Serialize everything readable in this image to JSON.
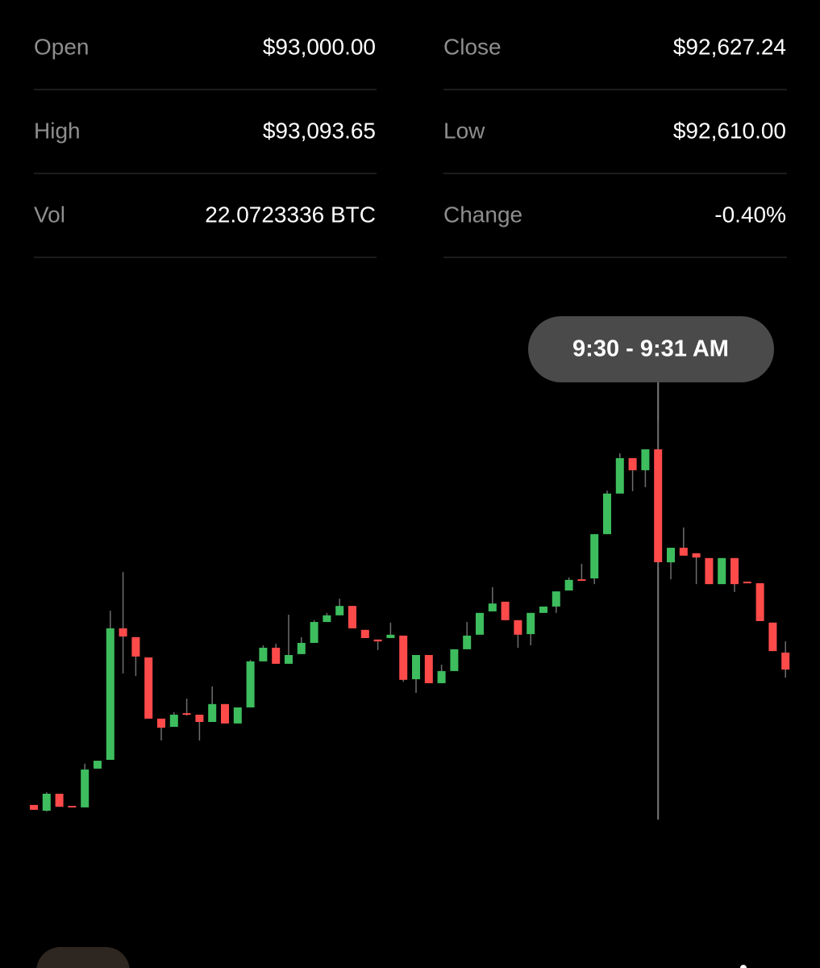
{
  "stats": [
    {
      "label": "Open",
      "value": "$93,000.00"
    },
    {
      "label": "Close",
      "value": "$92,627.24"
    },
    {
      "label": "High",
      "value": "$93,093.65"
    },
    {
      "label": "Low",
      "value": "$92,610.00"
    },
    {
      "label": "Vol",
      "value": "22.0723336 BTC"
    },
    {
      "label": "Change",
      "value": "-0.40%",
      "color": "#ff4a4a"
    }
  ],
  "tooltip": "9:30 - 9:31 AM",
  "chart_data": {
    "type": "candlestick",
    "ylim": [
      91700,
      93420
    ],
    "up_color": "#3dbd5d",
    "down_color": "#ff4a4a",
    "selected_index": 49,
    "candles": [
      [
        91826,
        91826,
        91810,
        91810
      ],
      [
        91807,
        91868,
        91804,
        91863
      ],
      [
        91863,
        91863,
        91820,
        91820
      ],
      [
        91823,
        91823,
        91818,
        91818
      ],
      [
        91818,
        91962,
        91818,
        91943
      ],
      [
        91946,
        91972,
        91946,
        91972
      ],
      [
        91975,
        92467,
        91975,
        92409
      ],
      [
        92409,
        92595,
        92260,
        92382
      ],
      [
        92380,
        92380,
        92252,
        92316
      ],
      [
        92313,
        92313,
        92111,
        92111
      ],
      [
        92111,
        92111,
        92039,
        92081
      ],
      [
        92084,
        92132,
        92084,
        92124
      ],
      [
        92129,
        92177,
        92121,
        92127
      ],
      [
        92124,
        92124,
        92039,
        92100
      ],
      [
        92100,
        92217,
        92100,
        92159
      ],
      [
        92159,
        92159,
        92095,
        92095
      ],
      [
        92095,
        92148,
        92095,
        92148
      ],
      [
        92148,
        92305,
        92148,
        92300
      ],
      [
        92300,
        92353,
        92300,
        92345
      ],
      [
        92345,
        92358,
        92292,
        92292
      ],
      [
        92292,
        92454,
        92292,
        92321
      ],
      [
        92324,
        92380,
        92324,
        92361
      ],
      [
        92361,
        92436,
        92361,
        92430
      ],
      [
        92430,
        92460,
        92430,
        92452
      ],
      [
        92452,
        92507,
        92452,
        92483
      ],
      [
        92483,
        92483,
        92409,
        92409
      ],
      [
        92404,
        92404,
        92377,
        92377
      ],
      [
        92372,
        92372,
        92337,
        92366
      ],
      [
        92377,
        92428,
        92377,
        92388
      ],
      [
        92385,
        92385,
        92233,
        92239
      ],
      [
        92241,
        92321,
        92196,
        92321
      ],
      [
        92321,
        92321,
        92228,
        92228
      ],
      [
        92228,
        92289,
        92228,
        92268
      ],
      [
        92268,
        92340,
        92268,
        92340
      ],
      [
        92340,
        92430,
        92340,
        92385
      ],
      [
        92388,
        92460,
        92388,
        92460
      ],
      [
        92465,
        92545,
        92465,
        92491
      ],
      [
        92497,
        92497,
        92436,
        92436
      ],
      [
        92436,
        92436,
        92345,
        92388
      ],
      [
        92390,
        92460,
        92353,
        92460
      ],
      [
        92460,
        92481,
        92460,
        92481
      ],
      [
        92481,
        92531,
        92460,
        92531
      ],
      [
        92534,
        92577,
        92534,
        92569
      ],
      [
        92571,
        92622,
        92566,
        92566
      ],
      [
        92574,
        92720,
        92555,
        92720
      ],
      [
        92720,
        92864,
        92720,
        92854
      ],
      [
        92854,
        92987,
        92854,
        92971
      ],
      [
        92971,
        92971,
        92862,
        92931
      ],
      [
        92931,
        93000,
        92875,
        93000
      ],
      [
        93000,
        93093.65,
        92610,
        92627.24
      ],
      [
        92627,
        92675,
        92571,
        92675
      ],
      [
        92675,
        92742,
        92649,
        92649
      ],
      [
        92657,
        92657,
        92555,
        92643
      ],
      [
        92641,
        92641,
        92555,
        92555
      ],
      [
        92555,
        92641,
        92555,
        92641
      ],
      [
        92641,
        92641,
        92529,
        92555
      ],
      [
        92563,
        92563,
        92558,
        92558
      ],
      [
        92558,
        92558,
        92433,
        92433
      ],
      [
        92428,
        92428,
        92334,
        92334
      ],
      [
        92329,
        92366,
        92246,
        92273
      ]
    ]
  }
}
